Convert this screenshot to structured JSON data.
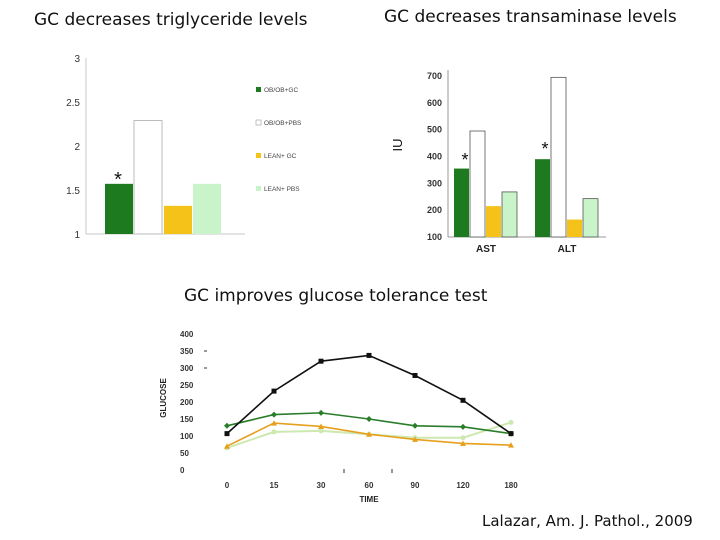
{
  "titles": {
    "triglyceride": "GC decreases triglyceride levels",
    "transaminase": "GC decreases transaminase levels",
    "glucose": "GC improves glucose tolerance test"
  },
  "citation": "Lalazar, Am. J. Pathol., 2009",
  "colors": {
    "ob_gc": "#1e7a1e",
    "ob_pbs": "#ffffff",
    "lean_gc": "#f5c21a",
    "lean_pbs": "#c9f3c9",
    "black": "#111111",
    "dark_green": "#2a7d2a",
    "orange": "#e6a01e",
    "pale_green": "#cde8b0"
  },
  "chart_data": [
    {
      "type": "bar",
      "title": "GC decreases triglyceride levels",
      "ylim": [
        1,
        3
      ],
      "yticks": [
        "1",
        "1.5",
        "2",
        "2.5",
        "3"
      ],
      "series": [
        {
          "name": "OB/OB+GC",
          "values": [
            1.57
          ]
        },
        {
          "name": "OB/OB+PBS",
          "values": [
            2.29
          ]
        },
        {
          "name": "LEAN+ GC",
          "values": [
            1.32
          ]
        },
        {
          "name": "LEAN+ PBS",
          "values": [
            1.57
          ]
        }
      ],
      "annotation": "*",
      "legend": "right"
    },
    {
      "type": "bar",
      "title": "GC decreases transaminase levels",
      "ylabel": "IU",
      "ylim": [
        100,
        700
      ],
      "yticks": [
        "100",
        "200",
        "300",
        "400",
        "500",
        "600",
        "700"
      ],
      "categories": [
        "AST",
        "ALT"
      ],
      "series": [
        {
          "values": [
            355,
            390
          ]
        },
        {
          "values": [
            495,
            695
          ]
        },
        {
          "values": [
            215,
            165
          ]
        },
        {
          "values": [
            268,
            243
          ]
        }
      ],
      "annotations": [
        "*",
        "*"
      ]
    },
    {
      "type": "line",
      "title": "GC improves glucose tolerance test",
      "xlabel": "TIME",
      "ylabel": "GLUCOSE",
      "x": [
        0,
        15,
        30,
        60,
        90,
        120,
        180
      ],
      "ylim": [
        0,
        400
      ],
      "yticks": [
        "0",
        "50",
        "100",
        "150",
        "200",
        "250",
        "300",
        "350",
        "400"
      ],
      "series": [
        {
          "values": [
            107,
            232,
            320,
            337,
            278,
            205,
            107
          ]
        },
        {
          "values": [
            130,
            163,
            168,
            150,
            130,
            127,
            107
          ]
        },
        {
          "values": [
            70,
            138,
            128,
            105,
            90,
            78,
            73
          ]
        },
        {
          "values": [
            65,
            112,
            115,
            105,
            95,
            95,
            140
          ]
        }
      ]
    }
  ]
}
